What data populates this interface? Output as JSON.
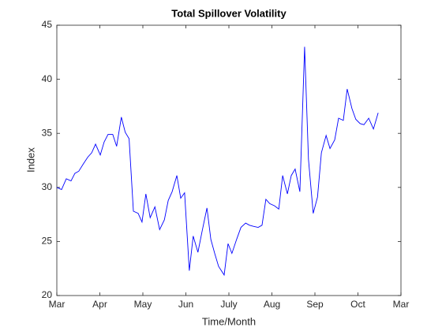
{
  "chart_data": {
    "type": "line",
    "title": "Total Spillover Volatility",
    "xlabel": "Time/Month",
    "ylabel": "Index",
    "xlim": [
      0,
      8
    ],
    "xticks": [
      {
        "value": 0,
        "label": "Mar"
      },
      {
        "value": 1,
        "label": "Apr"
      },
      {
        "value": 2,
        "label": "May"
      },
      {
        "value": 3,
        "label": "Jun"
      },
      {
        "value": 4,
        "label": "July"
      },
      {
        "value": 5,
        "label": "Aug"
      },
      {
        "value": 6,
        "label": "Sep"
      },
      {
        "value": 7,
        "label": "Oct"
      },
      {
        "value": 8,
        "label": "Mar"
      }
    ],
    "ylim": [
      20,
      45
    ],
    "yticks": [
      20,
      25,
      30,
      35,
      40,
      45
    ],
    "grid": false,
    "series": [
      {
        "color": "#0000ff",
        "x": [
          0,
          0.11,
          0.22,
          0.33,
          0.42,
          0.51,
          0.62,
          0.72,
          0.81,
          0.9,
          1.01,
          1.1,
          1.19,
          1.3,
          1.39,
          1.5,
          1.59,
          1.68,
          1.78,
          1.89,
          1.98,
          2.07,
          2.17,
          2.28,
          2.39,
          2.5,
          2.59,
          2.68,
          2.79,
          2.88,
          2.97,
          3.08,
          3.17,
          3.28,
          3.38,
          3.49,
          3.58,
          3.67,
          3.76,
          3.89,
          3.98,
          4.07,
          4.18,
          4.28,
          4.39,
          4.48,
          4.57,
          4.68,
          4.77,
          4.86,
          4.95,
          5.06,
          5.16,
          5.25,
          5.36,
          5.45,
          5.54,
          5.65,
          5.76,
          5.85,
          5.96,
          6.06,
          6.15,
          6.26,
          6.35,
          6.46,
          6.55,
          6.66,
          6.75,
          6.86,
          6.95,
          7.05,
          7.14,
          7.25,
          7.36,
          7.47
        ],
        "values": [
          30,
          29.8,
          30.8,
          30.6,
          31.3,
          31.5,
          32.2,
          32.8,
          33.2,
          34,
          33,
          34.2,
          34.9,
          34.9,
          33.8,
          36.5,
          35.1,
          34.5,
          27.8,
          27.6,
          26.8,
          29.4,
          27.2,
          28.2,
          26.1,
          27,
          28.8,
          29.6,
          31.1,
          29,
          29.5,
          22.3,
          25.5,
          24,
          26,
          28.1,
          25.2,
          23.9,
          22.7,
          21.9,
          24.8,
          23.9,
          25.2,
          26.3,
          26.7,
          26.5,
          26.4,
          26.3,
          26.5,
          28.9,
          28.5,
          28.3,
          28,
          31.1,
          29.4,
          31.1,
          31.7,
          29.6,
          43,
          32.6,
          27.6,
          29.1,
          33.2,
          34.8,
          33.6,
          34.4,
          36.4,
          36.2,
          39.1,
          37.3,
          36.3,
          35.9,
          35.8,
          36.4,
          35.4,
          36.9
        ]
      }
    ]
  }
}
